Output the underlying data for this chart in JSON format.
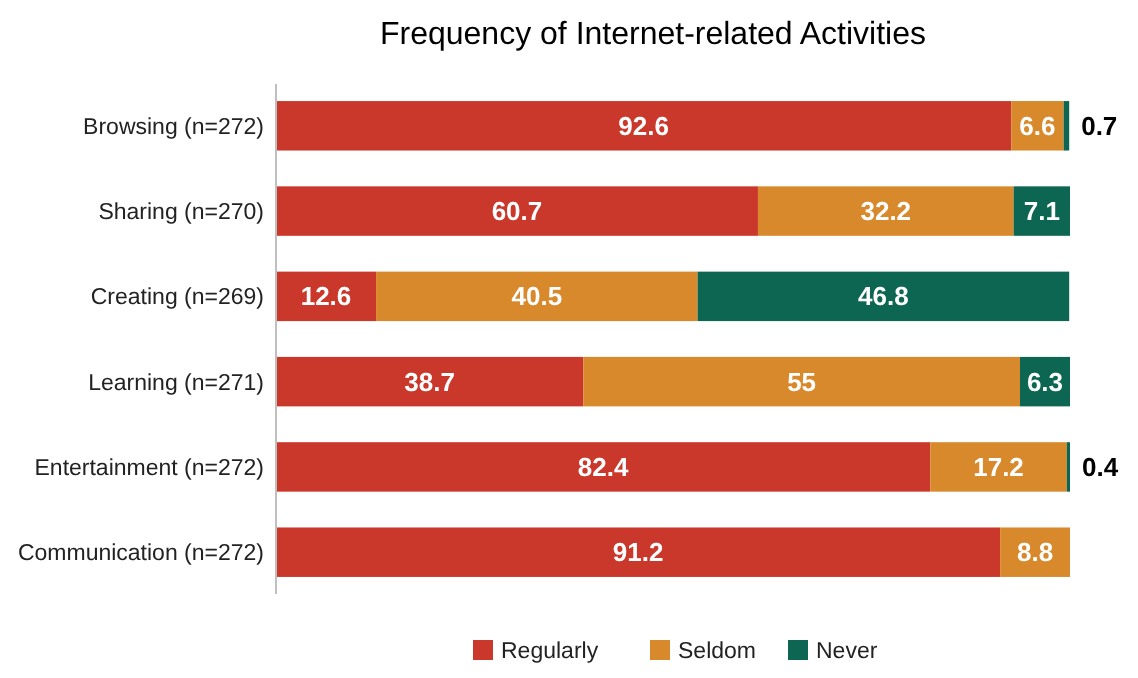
{
  "chart_data": {
    "type": "bar",
    "orientation": "horizontal",
    "stacked": true,
    "title": "Frequency of Internet-related Activities",
    "categories": [
      "Browsing (n=272)",
      "Sharing (n=270)",
      "Creating (n=269)",
      "Learning (n=271)",
      "Entertainment (n=272)",
      "Communication (n=272)"
    ],
    "series": [
      {
        "name": "Regularly",
        "color": "#c9382a",
        "values": [
          92.6,
          60.7,
          12.6,
          38.7,
          82.4,
          91.2
        ]
      },
      {
        "name": "Seldom",
        "color": "#d8892c",
        "values": [
          6.6,
          32.2,
          40.5,
          55,
          17.2,
          8.8
        ]
      },
      {
        "name": "Never",
        "color": "#0d6651",
        "values": [
          0.7,
          7.1,
          46.8,
          6.3,
          0.4,
          null
        ]
      }
    ],
    "xlim": [
      0,
      100
    ],
    "data_labels": true,
    "legend": "bottom"
  }
}
